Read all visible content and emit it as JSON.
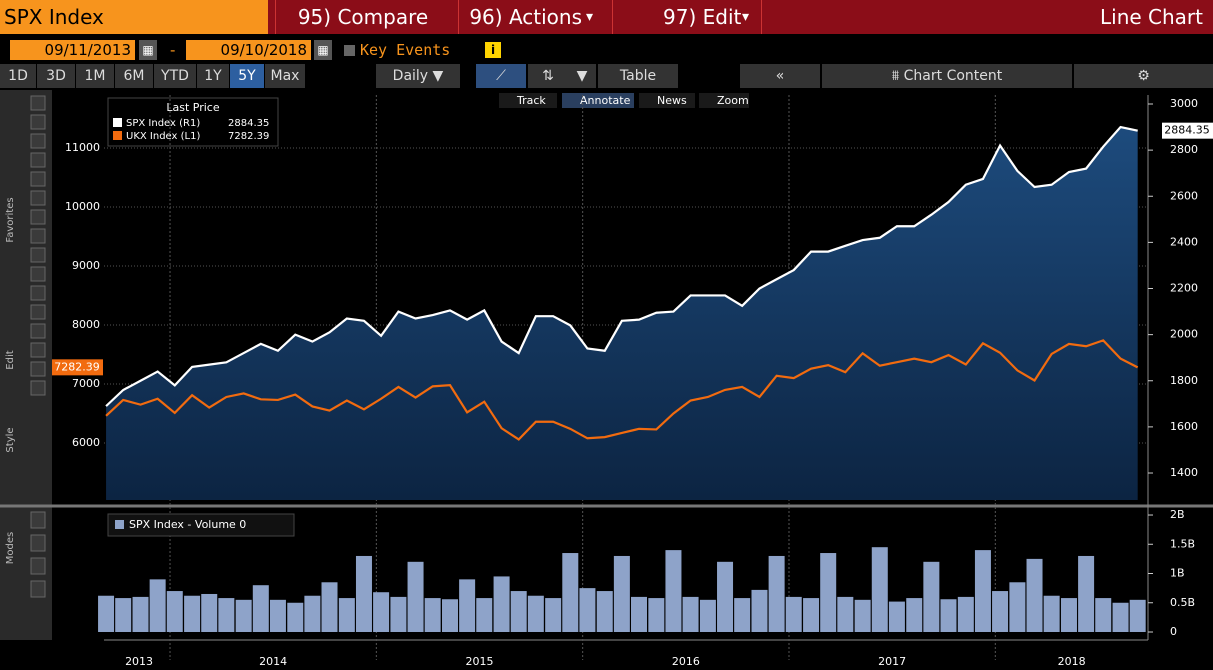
{
  "header": {
    "ticker": "SPX Index",
    "menu": [
      "95) Compare",
      "96) Actions",
      "97) Edit"
    ],
    "view": "Line Chart"
  },
  "date_range": {
    "start": "09/11/2013",
    "separator": "-",
    "end": "09/10/2018",
    "key_events": "Key Events"
  },
  "toolbar": {
    "periods": [
      "1D",
      "3D",
      "1M",
      "6M",
      "YTD",
      "1Y",
      "5Y",
      "Max"
    ],
    "frequency": "Daily",
    "table": "Table",
    "chart_content": "Chart Content"
  },
  "chart_tools": [
    "Track",
    "Annotate",
    "News",
    "Zoom"
  ],
  "side_labels": [
    "Favorites",
    "Edit",
    "Style",
    "Modes"
  ],
  "chart_data": [
    {
      "type": "line",
      "legend_title": "Last Price",
      "x": [
        2013.69,
        2013.773,
        2013.857,
        2013.94,
        2014.023,
        2014.107,
        2014.19,
        2014.273,
        2014.357,
        2014.44,
        2014.523,
        2014.607,
        2014.69,
        2014.773,
        2014.857,
        2014.94,
        2015.023,
        2015.107,
        2015.19,
        2015.273,
        2015.357,
        2015.44,
        2015.523,
        2015.607,
        2015.69,
        2015.773,
        2015.857,
        2015.94,
        2016.023,
        2016.107,
        2016.19,
        2016.273,
        2016.357,
        2016.44,
        2016.523,
        2016.607,
        2016.69,
        2016.773,
        2016.857,
        2016.94,
        2017.023,
        2017.107,
        2017.19,
        2017.273,
        2017.357,
        2017.44,
        2017.523,
        2017.607,
        2017.69,
        2017.773,
        2017.857,
        2017.94,
        2018.023,
        2018.107,
        2018.19,
        2018.273,
        2018.357,
        2018.44,
        2018.523,
        2018.607,
        2018.69
      ],
      "series": [
        {
          "name": "SPX Index  (R1)",
          "color": "#ffffff",
          "axis": "y2",
          "values": [
            1690,
            1760,
            1800,
            1840,
            1780,
            1860,
            1870,
            1880,
            1920,
            1960,
            1930,
            2000,
            1970,
            2010,
            2070,
            2060,
            1995,
            2100,
            2070,
            2085,
            2105,
            2065,
            2105,
            1970,
            1920,
            2080,
            2080,
            2040,
            1940,
            1930,
            2060,
            2065,
            2095,
            2100,
            2170,
            2170,
            2170,
            2125,
            2200,
            2240,
            2280,
            2360,
            2360,
            2385,
            2410,
            2420,
            2470,
            2470,
            2520,
            2575,
            2650,
            2675,
            2820,
            2710,
            2640,
            2650,
            2705,
            2720,
            2815,
            2900,
            2884.35
          ]
        },
        {
          "name": "UKX Index  (L1)",
          "color": "#f26b0f",
          "values": [
            6460,
            6730,
            6650,
            6750,
            6510,
            6810,
            6600,
            6780,
            6840,
            6740,
            6730,
            6820,
            6620,
            6550,
            6720,
            6570,
            6750,
            6950,
            6770,
            6960,
            6980,
            6520,
            6700,
            6250,
            6060,
            6360,
            6360,
            6240,
            6080,
            6100,
            6170,
            6240,
            6230,
            6500,
            6720,
            6780,
            6900,
            6950,
            6780,
            7140,
            7100,
            7260,
            7320,
            7200,
            7520,
            7310,
            7370,
            7430,
            7370,
            7490,
            7330,
            7690,
            7530,
            7230,
            7060,
            7510,
            7680,
            7640,
            7740,
            7430,
            7282.39
          ]
        }
      ],
      "xlim": [
        2013.68,
        2018.74
      ],
      "xticks": [
        {
          "value": 2013.85,
          "label": "2013"
        },
        {
          "value": 2014.5,
          "label": "2014"
        },
        {
          "value": 2015.5,
          "label": "2015"
        },
        {
          "value": 2016.5,
          "label": "2016"
        },
        {
          "value": 2017.5,
          "label": "2017"
        },
        {
          "value": 2018.37,
          "label": "2018"
        }
      ],
      "year_lines": [
        2014,
        2015,
        2016,
        2017,
        2018
      ],
      "ylim": [
        5034,
        11898
      ],
      "yticks": [
        6000,
        7000,
        8000,
        9000,
        10000,
        11000
      ],
      "y2lim": [
        1283,
        3039
      ],
      "y2ticks": [
        1400,
        1600,
        1800,
        2000,
        2200,
        2400,
        2600,
        2800,
        3000
      ],
      "grid": true,
      "area": true
    },
    {
      "type": "bar",
      "series": [
        {
          "name": "SPX Index - Volume 0",
          "color": "#8ea3c9",
          "values": [
            0.62,
            0.58,
            0.6,
            0.9,
            0.7,
            0.62,
            0.65,
            0.58,
            0.55,
            0.8,
            0.55,
            0.5,
            0.62,
            0.85,
            0.58,
            1.3,
            0.68,
            0.6,
            1.2,
            0.58,
            0.56,
            0.9,
            0.58,
            0.95,
            0.7,
            0.62,
            0.58,
            1.35,
            0.75,
            0.7,
            1.3,
            0.6,
            0.58,
            1.4,
            0.6,
            0.55,
            1.2,
            0.58,
            0.72,
            1.3,
            0.6,
            0.58,
            1.35,
            0.6,
            0.55,
            1.45,
            0.52,
            0.58,
            1.2,
            0.56,
            0.6,
            1.4,
            0.7,
            0.85,
            1.25,
            0.62,
            0.58,
            1.3,
            0.58,
            0.5,
            0.55
          ]
        }
      ],
      "ylim": [
        0,
        2.12
      ],
      "yticks": [
        0,
        {
          "value": 0.5,
          "label": "0.5B"
        },
        {
          "value": 1,
          "label": "1B"
        },
        {
          "value": 1.5,
          "label": "1.5B"
        },
        {
          "value": 2,
          "label": "2B"
        }
      ]
    }
  ]
}
